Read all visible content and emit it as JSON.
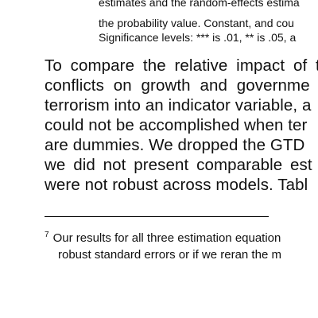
{
  "table_note": {
    "lines": [
      "estimates and the random-effects estima",
      "the probability value. Constant, and cou",
      "Significance levels: *** is .01, ** is .05, a"
    ]
  },
  "body": {
    "lines": [
      "To compare the relative impact of t",
      "conflicts on growth and governme",
      "terrorism into an indicator variable, a",
      "could not be accomplished when ter",
      "are dummies. We dropped the GTD",
      "we did not present comparable est",
      "were not robust across models. Tabl"
    ]
  },
  "footnote": {
    "marker": "7",
    "lines": [
      "Our results for all three estimation equation",
      "robust standard errors or if we reran the m"
    ]
  }
}
